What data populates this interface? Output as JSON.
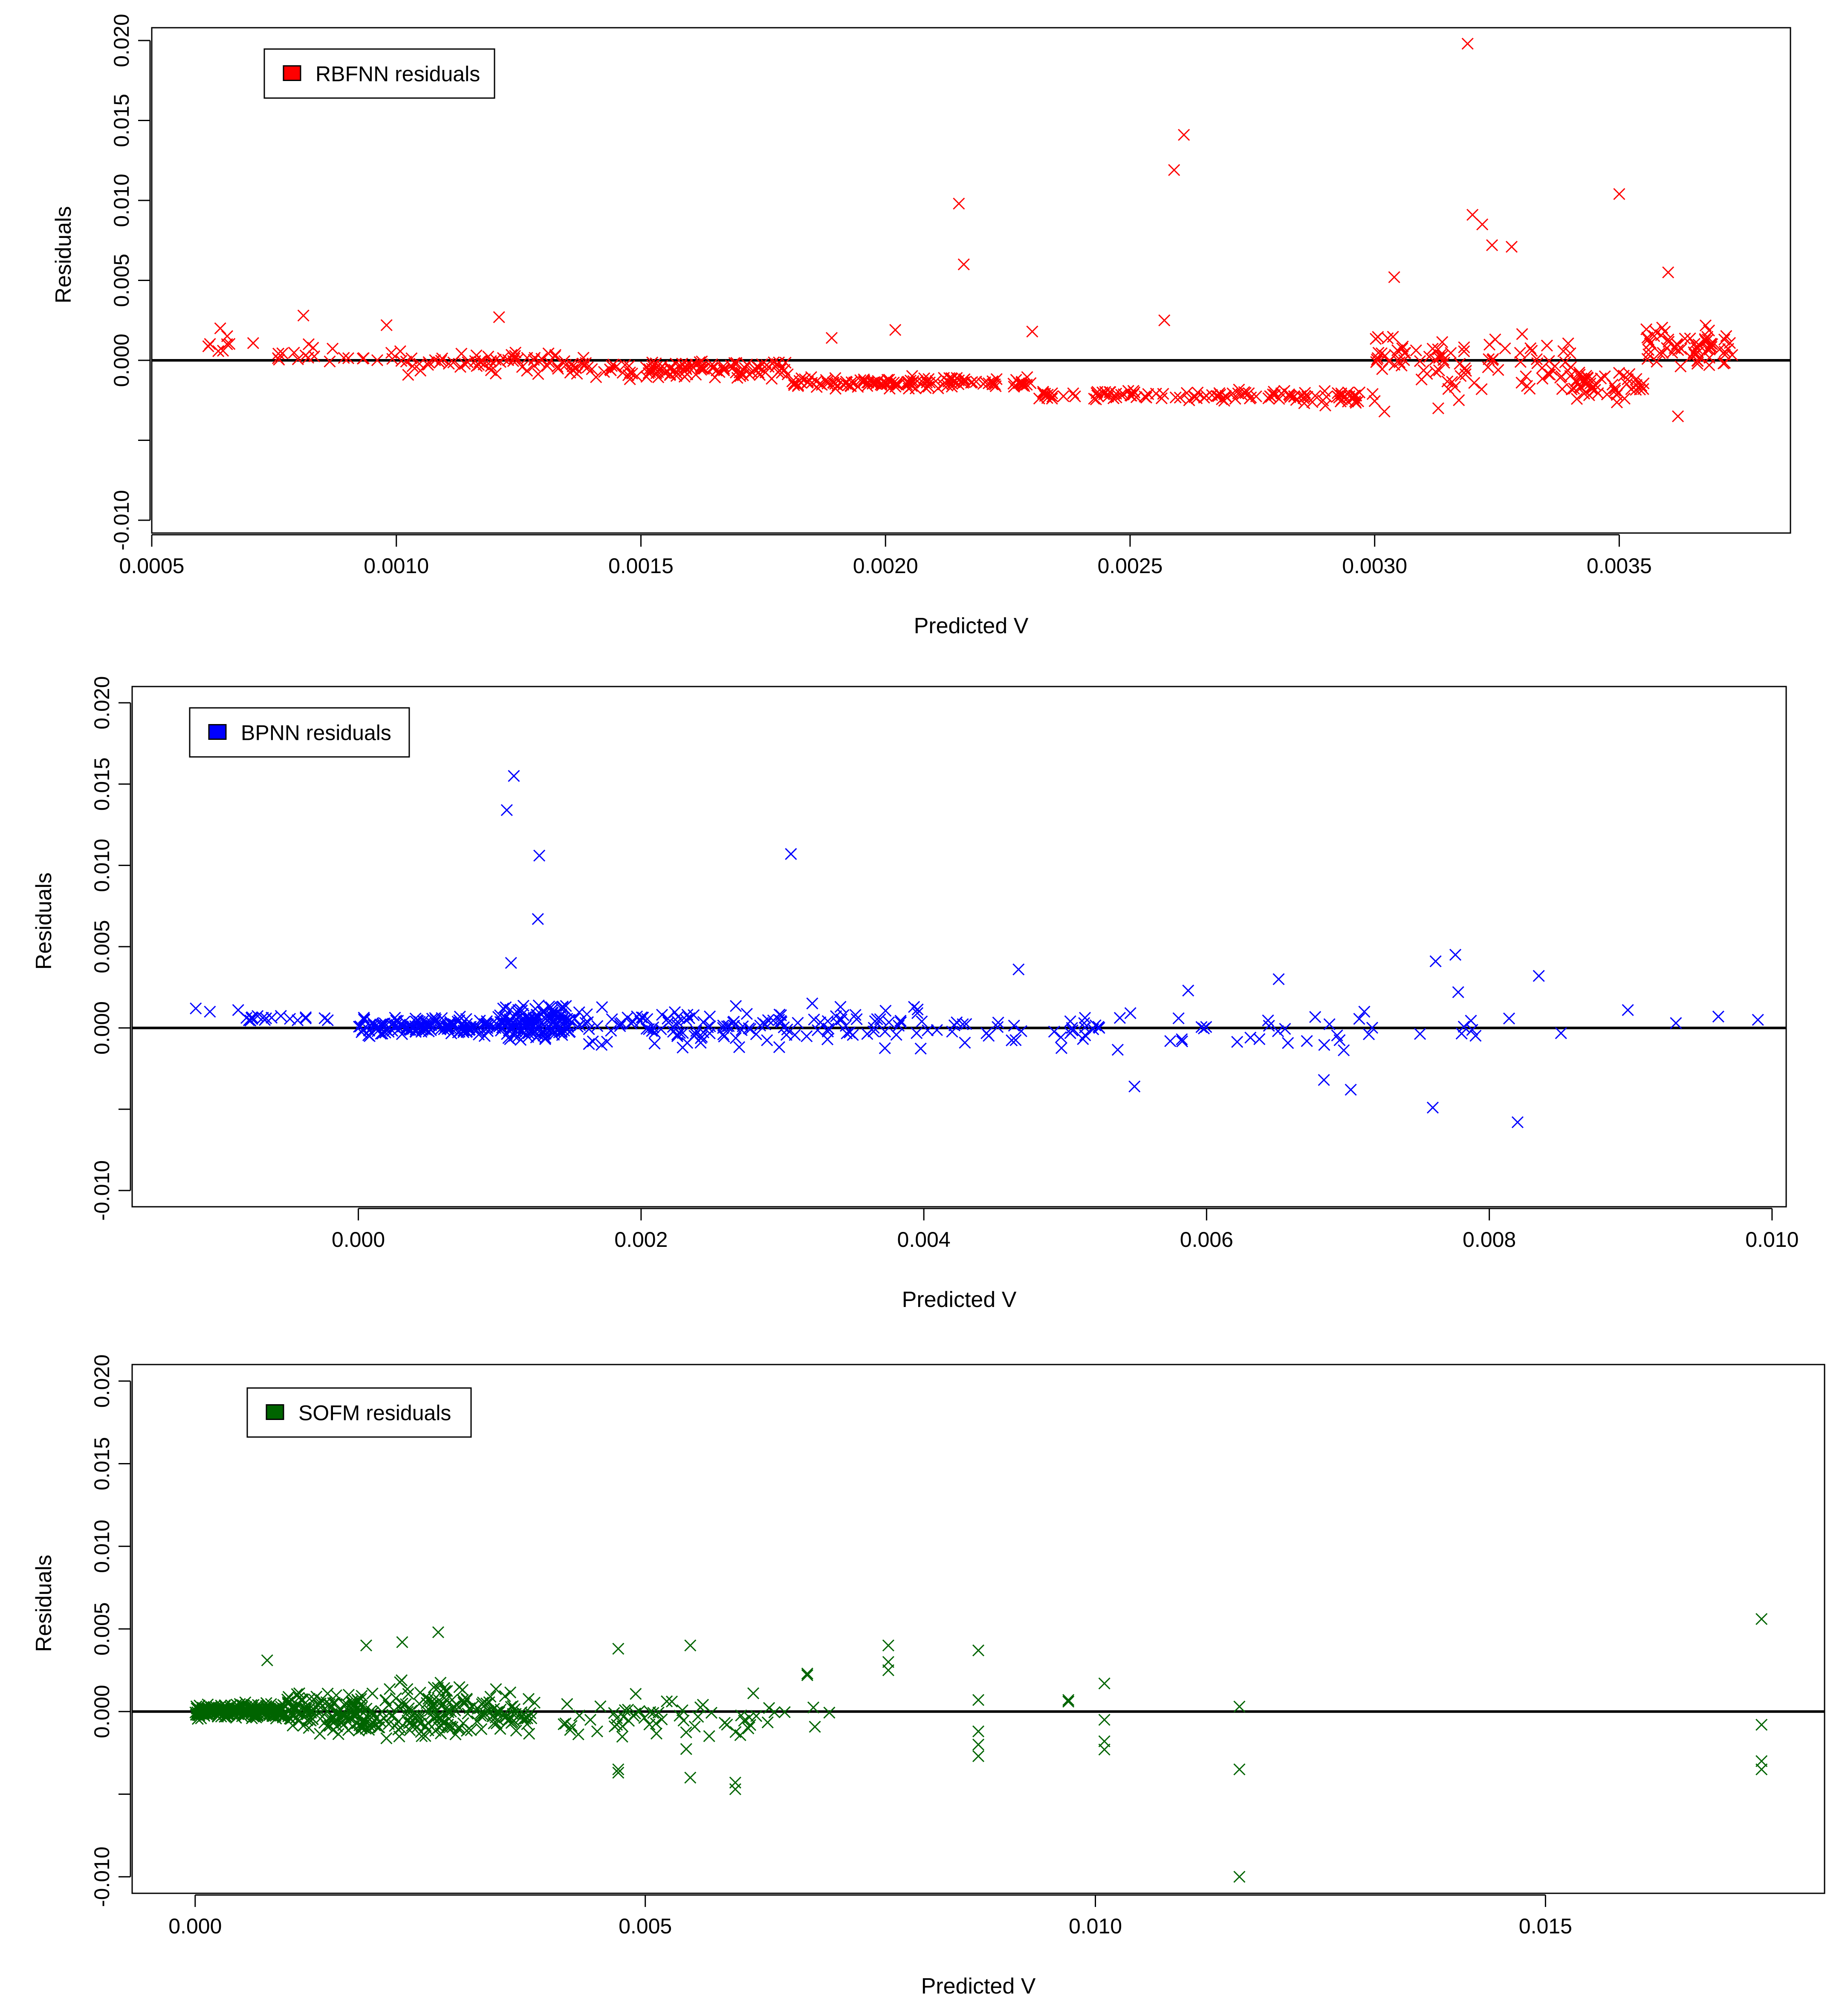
{
  "colors": {
    "rbfnn": "#ff0000",
    "bpnn": "#0000ff",
    "sofm": "#006400",
    "axis": "#000000"
  },
  "chart_data": [
    {
      "type": "scatter",
      "name": "rbfnn",
      "title": "",
      "legend": {
        "label": "RBFNN residuals",
        "position": "top-left"
      },
      "xlabel": "Predicted V",
      "ylabel": "Residuals",
      "xlim": [
        0.0005,
        0.00385
      ],
      "ylim": [
        -0.0108,
        0.0208
      ],
      "xticks": [
        0.0005,
        0.001,
        0.0015,
        0.002,
        0.0025,
        0.003,
        0.0035
      ],
      "xtick_labels": [
        "0.0005",
        "0.0010",
        "0.0015",
        "0.0020",
        "0.0025",
        "0.0030",
        "0.0035"
      ],
      "yticks": [
        -0.01,
        -0.005,
        0.0,
        0.005,
        0.01,
        0.015,
        0.02
      ],
      "ytick_labels": [
        "-0.010",
        "",
        "0.000",
        "0.005",
        "0.010",
        "0.015",
        "0.020"
      ],
      "hline": 0,
      "outliers": [
        [
          0.00319,
          0.0198
        ],
        [
          0.00261,
          0.0141
        ],
        [
          0.00259,
          0.0119
        ],
        [
          0.00215,
          0.0098
        ],
        [
          0.00216,
          0.006
        ],
        [
          0.0035,
          0.0104
        ],
        [
          0.0032,
          0.0091
        ],
        [
          0.00322,
          0.0085
        ],
        [
          0.00324,
          0.0072
        ],
        [
          0.00328,
          0.0071
        ],
        [
          0.00257,
          0.0025
        ],
        [
          0.00304,
          0.0052
        ],
        [
          0.0036,
          0.0055
        ],
        [
          0.00064,
          0.002
        ],
        [
          0.00081,
          0.0028
        ],
        [
          0.00121,
          0.0027
        ],
        [
          0.00098,
          0.0022
        ],
        [
          0.00202,
          0.0019
        ],
        [
          0.00189,
          0.0014
        ],
        [
          0.0023,
          0.0018
        ],
        [
          0.00362,
          -0.0035
        ],
        [
          0.00313,
          -0.003
        ],
        [
          0.00302,
          -0.0032
        ]
      ],
      "bands": [
        {
          "xmin": 0.0006,
          "xmax": 0.00075,
          "yc": 0.001,
          "spread": 0.0008,
          "n": 8
        },
        {
          "xmin": 0.00075,
          "xmax": 0.001,
          "yc": 0.0003,
          "spread": 0.001,
          "n": 20
        },
        {
          "xmin": 0.001,
          "xmax": 0.00135,
          "yc": -0.0001,
          "spread": 0.0009,
          "n": 60
        },
        {
          "xmin": 0.00135,
          "xmax": 0.0018,
          "yc": -0.0006,
          "spread": 0.0008,
          "n": 120
        },
        {
          "xmin": 0.0018,
          "xmax": 0.0023,
          "yc": -0.0014,
          "spread": 0.0005,
          "n": 130
        },
        {
          "xmin": 0.0023,
          "xmax": 0.00285,
          "yc": -0.0022,
          "spread": 0.0005,
          "n": 90
        },
        {
          "xmin": 0.00285,
          "xmax": 0.003,
          "yc": -0.0023,
          "spread": 0.0007,
          "n": 35
        },
        {
          "xmin": 0.003,
          "xmax": 0.00315,
          "yc": 0.0,
          "spread": 0.0022,
          "n": 40
        },
        {
          "xmin": 0.00315,
          "xmax": 0.0034,
          "yc": -0.0005,
          "spread": 0.0025,
          "n": 50
        },
        {
          "xmin": 0.0034,
          "xmax": 0.00355,
          "yc": -0.0016,
          "spread": 0.0014,
          "n": 50
        },
        {
          "xmin": 0.00355,
          "xmax": 0.00374,
          "yc": 0.0008,
          "spread": 0.0018,
          "n": 65
        }
      ]
    },
    {
      "type": "scatter",
      "name": "bpnn",
      "title": "",
      "legend": {
        "label": "BPNN residuals",
        "position": "top-left"
      },
      "xlabel": "Predicted V",
      "ylabel": "Residuals",
      "xlim": [
        -0.0016,
        0.0101
      ],
      "ylim": [
        -0.011,
        0.021
      ],
      "xticks": [
        0.0,
        0.002,
        0.004,
        0.006,
        0.008,
        0.01
      ],
      "xtick_labels": [
        "0.000",
        "0.002",
        "0.004",
        "0.006",
        "0.008",
        "0.010"
      ],
      "yticks": [
        -0.01,
        -0.005,
        0.0,
        0.005,
        0.01,
        0.015,
        0.02
      ],
      "ytick_labels": [
        "-0.010",
        "",
        "0.000",
        "0.005",
        "0.010",
        "0.015",
        "0.020"
      ],
      "hline": 0,
      "outliers": [
        [
          0.0011,
          0.0155
        ],
        [
          0.00105,
          0.0134
        ],
        [
          0.00128,
          0.0106
        ],
        [
          0.00306,
          0.0107
        ],
        [
          0.00127,
          0.0067
        ],
        [
          0.00108,
          0.004
        ],
        [
          0.00776,
          0.0045
        ],
        [
          0.00762,
          0.0041
        ],
        [
          0.00835,
          0.0032
        ],
        [
          0.00778,
          0.0022
        ],
        [
          0.0082,
          -0.0058
        ],
        [
          0.0076,
          -0.0049
        ],
        [
          0.00702,
          -0.0038
        ],
        [
          0.00683,
          -0.0032
        ],
        [
          0.00549,
          -0.0036
        ],
        [
          0.00651,
          0.003
        ],
        [
          0.00467,
          0.0036
        ],
        [
          0.00587,
          0.0023
        ],
        [
          0.00898,
          0.0011
        ],
        [
          0.00962,
          0.0007
        ],
        [
          0.0099,
          0.0005
        ],
        [
          0.00932,
          0.0003
        ],
        [
          -0.00115,
          0.0012
        ],
        [
          -0.00105,
          0.001
        ],
        [
          -0.00085,
          0.0011
        ]
      ],
      "bands": [
        {
          "xmin": -0.0008,
          "xmax": -0.0002,
          "yc": 0.0006,
          "spread": 0.0003,
          "n": 18
        },
        {
          "xmin": 0.0,
          "xmax": 0.001,
          "yc": 0.0001,
          "spread": 0.0008,
          "n": 140
        },
        {
          "xmin": 0.001,
          "xmax": 0.0015,
          "yc": 0.0003,
          "spread": 0.0015,
          "n": 140
        },
        {
          "xmin": 0.0015,
          "xmax": 0.0025,
          "yc": 0.0002,
          "spread": 0.0017,
          "n": 65
        },
        {
          "xmin": 0.0025,
          "xmax": 0.004,
          "yc": 0.0001,
          "spread": 0.0018,
          "n": 75
        },
        {
          "xmin": 0.004,
          "xmax": 0.0055,
          "yc": -0.0001,
          "spread": 0.002,
          "n": 35
        },
        {
          "xmin": 0.0055,
          "xmax": 0.007,
          "yc": -0.0003,
          "spread": 0.0018,
          "n": 22
        },
        {
          "xmin": 0.007,
          "xmax": 0.0087,
          "yc": 0.0001,
          "spread": 0.0012,
          "n": 12
        }
      ]
    },
    {
      "type": "scatter",
      "name": "sofm",
      "title": "",
      "legend": {
        "label": "SOFM residuals",
        "position": "top-left"
      },
      "xlabel": "Predicted V",
      "ylabel": "Residuals",
      "xlim": [
        -0.0007,
        0.0181
      ],
      "ylim": [
        -0.011,
        0.021
      ],
      "xticks": [
        0.0,
        0.005,
        0.01,
        0.015
      ],
      "xtick_labels": [
        "0.000",
        "0.005",
        "0.010",
        "0.015"
      ],
      "yticks": [
        -0.01,
        -0.005,
        0.0,
        0.005,
        0.01,
        0.015,
        0.02
      ],
      "ytick_labels": [
        "-0.010",
        "",
        "0.000",
        "0.005",
        "0.010",
        "0.015",
        "0.020"
      ],
      "hline": 0,
      "outliers": [
        [
          0.0174,
          0.0056
        ],
        [
          0.0174,
          -0.0008
        ],
        [
          0.0174,
          -0.003
        ],
        [
          0.0174,
          -0.0035
        ],
        [
          0.0116,
          -0.01
        ],
        [
          0.0116,
          -0.0035
        ],
        [
          0.0116,
          0.0003
        ],
        [
          0.0101,
          0.0017
        ],
        [
          0.0101,
          -0.0005
        ],
        [
          0.0101,
          -0.0018
        ],
        [
          0.0101,
          -0.0023
        ],
        [
          0.0097,
          0.0007
        ],
        [
          0.0097,
          0.0006
        ],
        [
          0.0087,
          0.0037
        ],
        [
          0.0087,
          0.0007
        ],
        [
          0.0087,
          -0.0012
        ],
        [
          0.0087,
          -0.002
        ],
        [
          0.0087,
          -0.0027
        ],
        [
          0.0077,
          0.004
        ],
        [
          0.0077,
          0.003
        ],
        [
          0.0077,
          0.0025
        ],
        [
          0.0068,
          0.0023
        ],
        [
          0.0068,
          0.0022
        ],
        [
          0.006,
          -0.0043
        ],
        [
          0.006,
          -0.0047
        ],
        [
          0.0055,
          0.004
        ],
        [
          0.0055,
          -0.004
        ],
        [
          0.0047,
          0.0038
        ],
        [
          0.0047,
          -0.0035
        ],
        [
          0.0047,
          -0.0037
        ],
        [
          0.0027,
          0.0048
        ],
        [
          0.0023,
          0.0042
        ],
        [
          0.0019,
          0.004
        ],
        [
          0.0008,
          0.0031
        ]
      ],
      "bands": [
        {
          "xmin": 0.0,
          "xmax": 0.001,
          "yc": 0.0,
          "spread": 0.0006,
          "n": 220
        },
        {
          "xmin": 0.001,
          "xmax": 0.002,
          "yc": 0.0,
          "spread": 0.0018,
          "n": 140
        },
        {
          "xmin": 0.002,
          "xmax": 0.003,
          "yc": 0.0,
          "spread": 0.0025,
          "n": 110
        },
        {
          "xmin": 0.003,
          "xmax": 0.0038,
          "yc": 0.0,
          "spread": 0.0018,
          "n": 60
        },
        {
          "xmin": 0.004,
          "xmax": 0.005,
          "yc": -0.0003,
          "spread": 0.002,
          "n": 25
        },
        {
          "xmin": 0.005,
          "xmax": 0.0062,
          "yc": -0.0004,
          "spread": 0.0025,
          "n": 30
        },
        {
          "xmin": 0.0062,
          "xmax": 0.0072,
          "yc": -0.0002,
          "spread": 0.0012,
          "n": 8
        }
      ]
    }
  ]
}
